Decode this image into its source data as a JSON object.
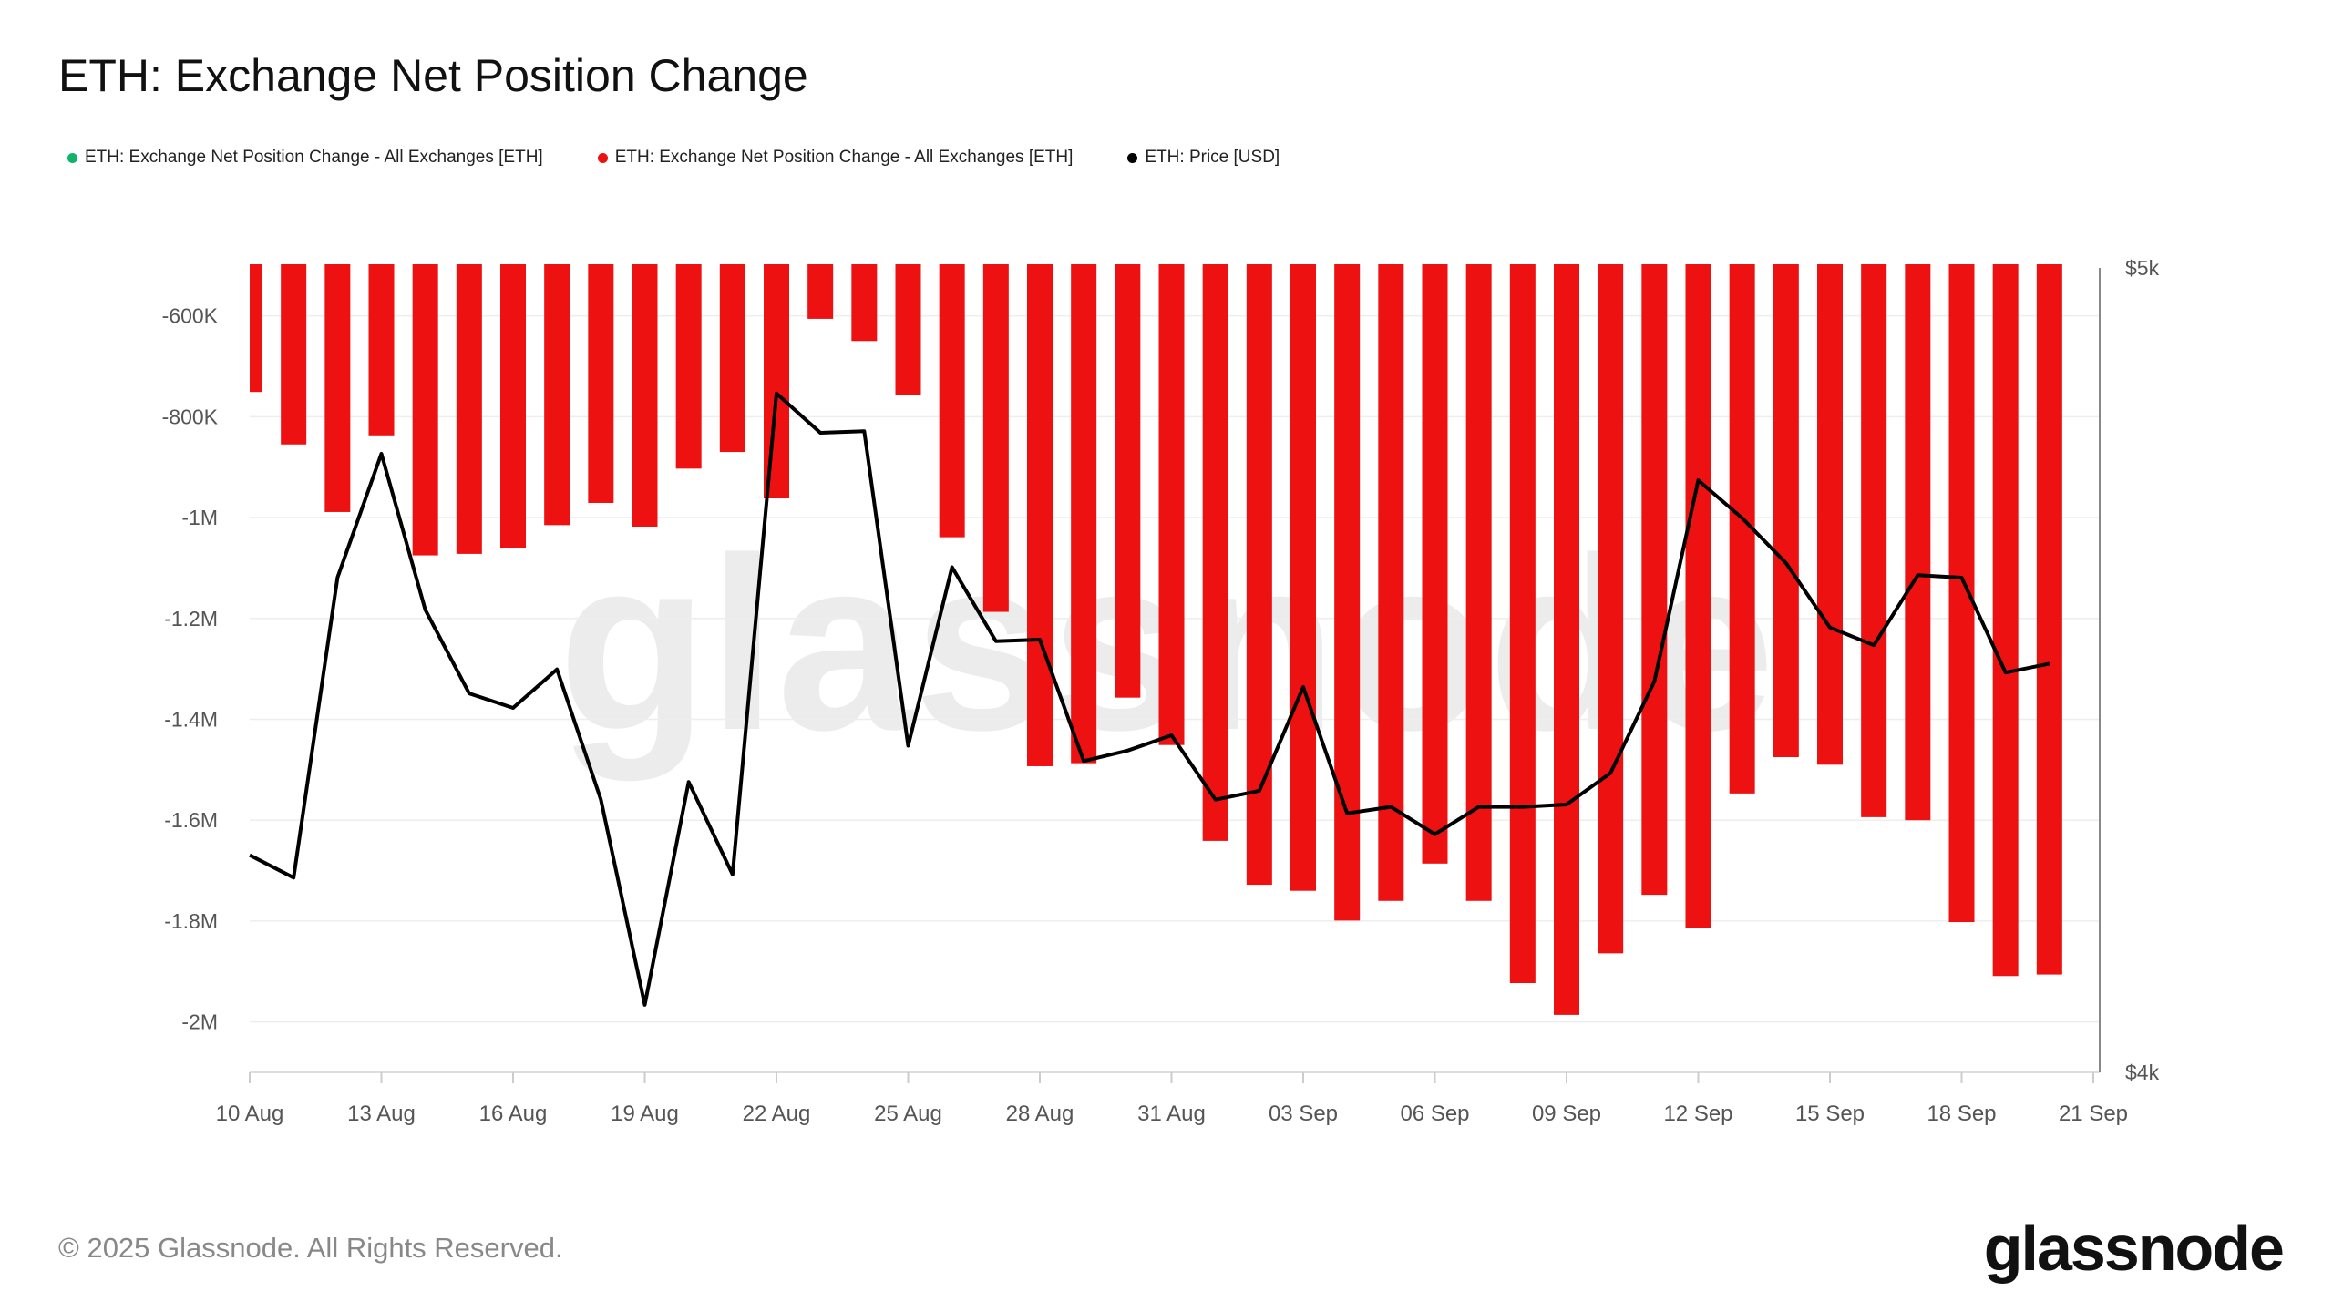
{
  "title": "ETH: Exchange Net Position Change",
  "legend": [
    {
      "label": "ETH: Exchange Net Position Change - All Exchanges [ETH]",
      "color": "#0fb46a"
    },
    {
      "label": "ETH: Exchange Net Position Change - All Exchanges [ETH]",
      "color": "#ee1111"
    },
    {
      "label": "ETH: Price [USD]",
      "color": "#000000"
    }
  ],
  "footer": "© 2025 Glassnode. All Rights Reserved.",
  "logo": "glassnode",
  "watermark": "glassnode",
  "chart_data": {
    "type": "bar+line",
    "title": "ETH: Exchange Net Position Change",
    "grid": true,
    "legend_position": "top-left",
    "x_start": "2025-08-10",
    "x_end": "2025-09-21",
    "x_tick_labels": [
      "10 Aug",
      "13 Aug",
      "16 Aug",
      "19 Aug",
      "22 Aug",
      "25 Aug",
      "28 Aug",
      "31 Aug",
      "03 Sep",
      "06 Sep",
      "09 Sep",
      "12 Sep",
      "15 Sep",
      "18 Sep",
      "21 Sep"
    ],
    "y_left": {
      "ticks": [
        -600000,
        -800000,
        -1000000,
        -1200000,
        -1400000,
        -1600000,
        -1800000,
        -2000000
      ],
      "tick_labels": [
        "-600K",
        "-800K",
        "-1M",
        "-1.2M",
        "-1.4M",
        "-1.6M",
        "-1.8M",
        "-2M"
      ],
      "range": [
        -2100000,
        -505000
      ]
    },
    "y_right": {
      "tick_labels": [
        "$5k",
        "$4k"
      ],
      "range": [
        4000,
        5000
      ]
    },
    "dates": [
      "2025-08-10",
      "2025-08-11",
      "2025-08-12",
      "2025-08-13",
      "2025-08-14",
      "2025-08-15",
      "2025-08-16",
      "2025-08-17",
      "2025-08-18",
      "2025-08-19",
      "2025-08-20",
      "2025-08-21",
      "2025-08-22",
      "2025-08-23",
      "2025-08-24",
      "2025-08-25",
      "2025-08-26",
      "2025-08-27",
      "2025-08-28",
      "2025-08-29",
      "2025-08-30",
      "2025-08-31",
      "2025-09-01",
      "2025-09-02",
      "2025-09-03",
      "2025-09-04",
      "2025-09-05",
      "2025-09-06",
      "2025-09-07",
      "2025-09-08",
      "2025-09-09",
      "2025-09-10",
      "2025-09-11",
      "2025-09-12",
      "2025-09-13",
      "2025-09-14",
      "2025-09-15",
      "2025-09-16",
      "2025-09-17",
      "2025-09-18",
      "2025-09-19",
      "2025-09-20"
    ],
    "series": [
      {
        "name": "ETH: Exchange Net Position Change - All Exchanges [ETH]",
        "type": "bar",
        "axis": "left",
        "color": "#ee1111",
        "values": [
          -751000,
          -855000,
          -989000,
          -837000,
          -1075000,
          -1072000,
          -1060000,
          -1015000,
          -971000,
          -1018000,
          -903000,
          -870000,
          -962000,
          -606000,
          -650000,
          -757000,
          -1039000,
          -1187000,
          -1493000,
          -1487000,
          -1357000,
          -1451000,
          -1641000,
          -1728000,
          -1740000,
          -1799000,
          -1760000,
          -1686000,
          -1760000,
          -1923000,
          -1986000,
          -1864000,
          -1748000,
          -1814000,
          -1547000,
          -1475000,
          -1490000,
          -1594000,
          -1600000,
          -1802000,
          -1909000,
          -1906000
        ]
      },
      {
        "name": "ETH: Price [USD]",
        "type": "line",
        "axis": "right",
        "color": "#000000",
        "values": [
          4270,
          4242,
          4615,
          4769,
          4575,
          4471,
          4453,
          4501,
          4339,
          4084,
          4361,
          4246,
          4844,
          4795,
          4797,
          4406,
          4628,
          4536,
          4538,
          4387,
          4400,
          4419,
          4339,
          4350,
          4479,
          4322,
          4330,
          4296,
          4330,
          4330,
          4333,
          4372,
          4486,
          4736,
          4689,
          4633,
          4553,
          4531,
          4618,
          4615,
          4497,
          4508
        ]
      }
    ]
  }
}
